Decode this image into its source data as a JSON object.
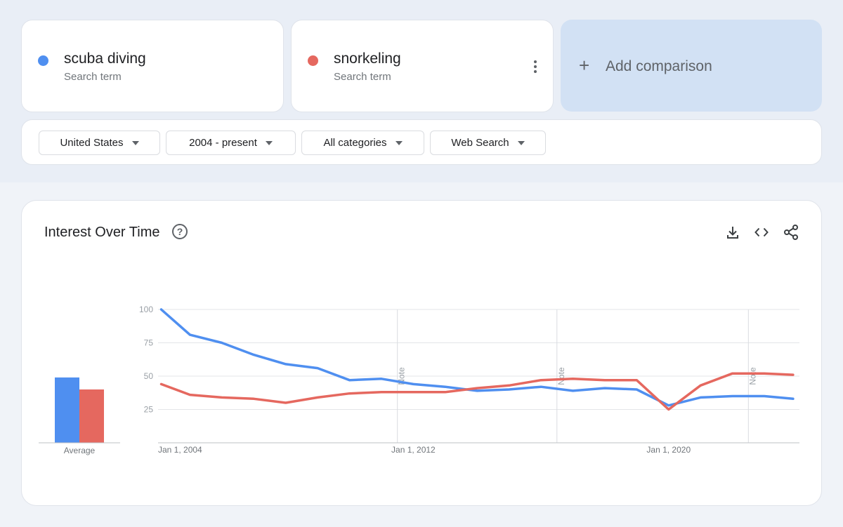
{
  "terms": [
    {
      "name": "scuba diving",
      "sub": "Search term",
      "color": "#4f8ff0"
    },
    {
      "name": "snorkeling",
      "sub": "Search term",
      "color": "#e5685f"
    }
  ],
  "add_comparison": {
    "icon": "+",
    "label": "Add comparison"
  },
  "filters": [
    {
      "label": "United States"
    },
    {
      "label": "2004 - present"
    },
    {
      "label": "All categories"
    },
    {
      "label": "Web Search"
    }
  ],
  "chart_section": {
    "title": "Interest Over Time",
    "help_icon": "question-circle-icon",
    "tools": [
      "download-icon",
      "embed-code-icon",
      "share-icon"
    ]
  },
  "chart_data": {
    "type": "line",
    "title": "Interest Over Time",
    "ylim": [
      0,
      100
    ],
    "y_ticks": [
      25,
      50,
      75,
      100
    ],
    "grid": true,
    "x_ticks": [
      {
        "label": "Jan 1, 2004",
        "year": 2004
      },
      {
        "label": "Jan 1, 2012",
        "year": 2012
      },
      {
        "label": "Jan 1, 2020",
        "year": 2020
      }
    ],
    "notes": [
      {
        "label": "Note",
        "year": 2011.5
      },
      {
        "label": "Note",
        "year": 2016.5
      },
      {
        "label": "Note",
        "year": 2022.5
      }
    ],
    "x_years": [
      2004.1,
      2005,
      2006,
      2007,
      2008,
      2009,
      2010,
      2011,
      2012,
      2013,
      2014,
      2015,
      2016,
      2017,
      2018,
      2019,
      2020,
      2021,
      2022,
      2023,
      2023.9
    ],
    "series": [
      {
        "name": "scuba diving",
        "color": "#4f8ff0",
        "values": [
          100,
          81,
          75,
          66,
          59,
          56,
          47,
          48,
          44,
          42,
          39,
          40,
          42,
          39,
          41,
          40,
          28,
          34,
          35,
          35,
          33
        ]
      },
      {
        "name": "snorkeling",
        "color": "#e5685f",
        "values": [
          44,
          36,
          34,
          33,
          30,
          34,
          37,
          38,
          38,
          38,
          41,
          43,
          47,
          48,
          47,
          47,
          25,
          43,
          52,
          52,
          51
        ]
      }
    ],
    "average": {
      "label": "Average",
      "values": [
        49,
        40
      ]
    }
  }
}
